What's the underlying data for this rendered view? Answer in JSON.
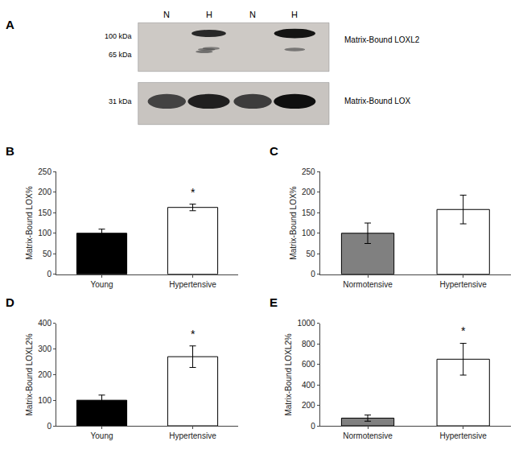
{
  "chart_data": [
    {
      "type": "blot",
      "title": "A",
      "categories": [
        "N",
        "H",
        "N",
        "H"
      ],
      "annotations": [
        "100 kDa",
        "65 kDa",
        "31 kDa",
        "Matrix-Bound LOXL2",
        "Matrix-Bound LOX"
      ]
    },
    {
      "type": "bar",
      "title": "B",
      "categories": [
        "Young",
        "Hypertensive"
      ],
      "values": [
        100,
        163
      ],
      "errors": [
        10,
        8
      ],
      "colors": [
        "#000000",
        "#ffffff"
      ],
      "ylabel": "Matrix-Bound LOX%",
      "ylim": [
        0,
        250
      ],
      "yticks": [
        0,
        50,
        100,
        150,
        200,
        250
      ],
      "grid": false,
      "annotations": [
        {
          "text": "*",
          "category": "Hypertensive"
        }
      ]
    },
    {
      "type": "bar",
      "title": "C",
      "categories": [
        "Normotensive",
        "Hypertensive"
      ],
      "values": [
        100,
        158
      ],
      "errors": [
        25,
        35
      ],
      "colors": [
        "#808080",
        "#ffffff"
      ],
      "ylabel": "Matrix-Bound LOX%",
      "ylim": [
        0,
        250
      ],
      "yticks": [
        0,
        50,
        100,
        150,
        200,
        250
      ],
      "grid": false
    },
    {
      "type": "bar",
      "title": "D",
      "categories": [
        "Young",
        "Hypertensive"
      ],
      "values": [
        100,
        270
      ],
      "errors": [
        20,
        42
      ],
      "colors": [
        "#000000",
        "#ffffff"
      ],
      "ylabel": "Matrix-Bound LOXL2%",
      "ylim": [
        0,
        400
      ],
      "yticks": [
        0,
        100,
        200,
        300,
        400
      ],
      "grid": false,
      "annotations": [
        {
          "text": "*",
          "category": "Hypertensive"
        }
      ]
    },
    {
      "type": "bar",
      "title": "E",
      "categories": [
        "Normotensive",
        "Hypertensive"
      ],
      "values": [
        75,
        650
      ],
      "errors": [
        30,
        155
      ],
      "colors": [
        "#808080",
        "#ffffff"
      ],
      "ylabel": "Matrix-Bound LOXL2%",
      "ylim": [
        0,
        1000
      ],
      "yticks": [
        0,
        200,
        400,
        600,
        800,
        1000
      ],
      "grid": false,
      "annotations": [
        {
          "text": "*",
          "category": "Hypertensive"
        }
      ]
    }
  ]
}
